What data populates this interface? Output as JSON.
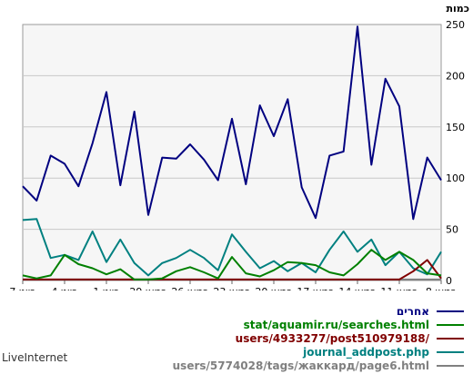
{
  "chart_data": {
    "type": "line",
    "ylabel": "כמות",
    "ylim": [
      0,
      250
    ],
    "yticks": [
      0,
      50,
      100,
      150,
      200,
      250
    ],
    "grid": true,
    "x_order": "right-to-left",
    "x_tick_labels": [
      "8 במאי",
      "11 במאי",
      "14 במאי",
      "17 במאי",
      "20 במאי",
      "23 במאי",
      "26 במאי",
      "29 במאי",
      "1 ביוני",
      "4 ביוני",
      "7 ביוני"
    ],
    "series": [
      {
        "name": "אחרים",
        "color": "#000080",
        "values": [
          98,
          120,
          60,
          170,
          197,
          113,
          248,
          126,
          122,
          61,
          91,
          177,
          141,
          171,
          94,
          158,
          98,
          118,
          133,
          119,
          120,
          64,
          165,
          93,
          184,
          134,
          92,
          114,
          122,
          78,
          92
        ]
      },
      {
        "name": "stat/aquamir.ru/searches.html",
        "color": "#008000",
        "values": [
          5,
          7,
          20,
          28,
          20,
          30,
          16,
          5,
          8,
          15,
          17,
          18,
          10,
          4,
          7,
          23,
          2,
          8,
          13,
          9,
          2,
          1,
          1,
          11,
          6,
          12,
          16,
          25,
          5,
          2,
          5
        ]
      },
      {
        "name": "users/4933277/post510979188/",
        "color": "#800000",
        "values": [
          2,
          20,
          9,
          1,
          1,
          1,
          1,
          1,
          1,
          1,
          1,
          1,
          1,
          1,
          1,
          1,
          1,
          1,
          1,
          1,
          1,
          1,
          1,
          1,
          1,
          1,
          1,
          1,
          1,
          1,
          1
        ]
      },
      {
        "name": "journal_addpost.php",
        "color": "#008080",
        "values": [
          28,
          6,
          12,
          28,
          15,
          40,
          28,
          48,
          30,
          8,
          17,
          9,
          19,
          12,
          28,
          45,
          10,
          22,
          30,
          22,
          17,
          5,
          17,
          40,
          18,
          48,
          20,
          25,
          22,
          60,
          59
        ]
      },
      {
        "name": "users/5774028/tags/жаккард/page6.html",
        "color": "#808080",
        "values": [
          1,
          1,
          1,
          1,
          1,
          1,
          1,
          1,
          1,
          1,
          1,
          1,
          1,
          1,
          1,
          1,
          1,
          1,
          1,
          1,
          1,
          1,
          1,
          1,
          1,
          1,
          1,
          1,
          1,
          1,
          1
        ]
      }
    ]
  },
  "footer": {
    "brand": "LiveInternet"
  }
}
